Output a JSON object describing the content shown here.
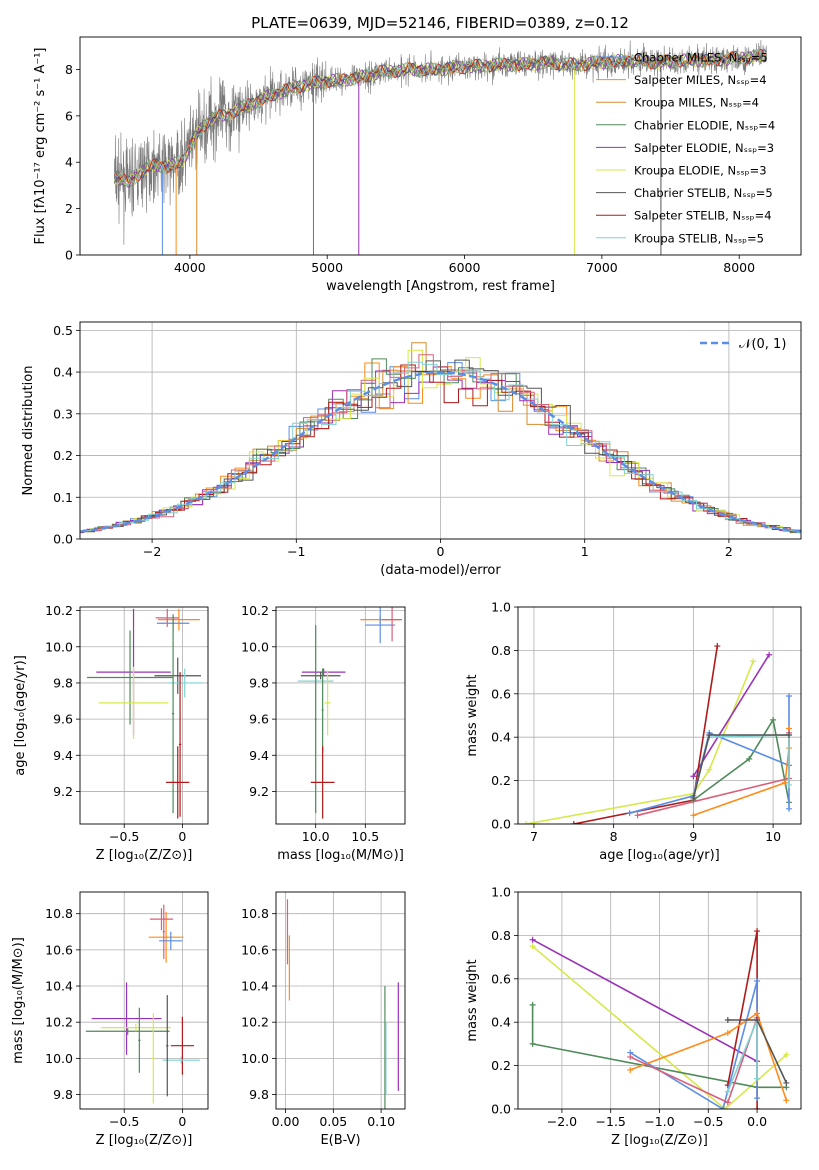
{
  "figure": {
    "title": "PLATE=0639, MJD=52146, FIBERID=0389, z=0.12"
  },
  "chart_data": [
    {
      "id": "spectrum",
      "type": "line",
      "xlabel": "wavelength [Angstrom, rest frame]",
      "ylabel": "Flux [fλ10⁻¹⁷ erg cm⁻² s⁻¹ A⁻¹]",
      "xlim": [
        3200,
        8450
      ],
      "ylim": [
        0,
        9.4
      ],
      "xticks": [
        4000,
        5000,
        6000,
        7000,
        8000
      ],
      "yticks": [
        0,
        2,
        4,
        6,
        8
      ],
      "grid": false,
      "legend_position": "right",
      "legend": [
        {
          "label": "Chabrier MILES, Nₛₛₚ=5",
          "color": "#5b8ee6"
        },
        {
          "label": "Salpeter MILES, Nₛₛₚ=4",
          "color": "#ff8c1a"
        },
        {
          "label": "Kroupa MILES, Nₛₛₚ=4",
          "color": "#d98a2e"
        },
        {
          "label": "Chabrier ELODIE, Nₛₛₚ=4",
          "color": "#4f8a5b"
        },
        {
          "label": "Salpeter ELODIE, Nₛₛₚ=3",
          "color": "#9a32b8"
        },
        {
          "label": "Kroupa ELODIE, Nₛₛₚ=3",
          "color": "#d7e84a"
        },
        {
          "label": "Chabrier STELIB, Nₛₛₚ=5",
          "color": "#555555"
        },
        {
          "label": "Salpeter STELIB, Nₛₛₚ=4",
          "color": "#b01a1a"
        },
        {
          "label": "Kroupa STELIB, Nₛₛₚ=5",
          "color": "#7fd3d3"
        }
      ],
      "data_color": "#7a7a7a",
      "continuum_points": [
        [
          3450,
          3.4
        ],
        [
          3550,
          3.1
        ],
        [
          3650,
          3.6
        ],
        [
          3750,
          3.9
        ],
        [
          3850,
          3.8
        ],
        [
          3950,
          4.1
        ],
        [
          4050,
          5.2
        ],
        [
          4150,
          5.9
        ],
        [
          4250,
          6.0
        ],
        [
          4400,
          6.4
        ],
        [
          4600,
          6.9
        ],
        [
          4800,
          7.3
        ],
        [
          5000,
          7.5
        ],
        [
          5200,
          7.6
        ],
        [
          5400,
          7.9
        ],
        [
          5600,
          8.0
        ],
        [
          5800,
          8.0
        ],
        [
          6000,
          8.1
        ],
        [
          6200,
          8.2
        ],
        [
          6400,
          8.2
        ],
        [
          6600,
          8.3
        ],
        [
          6800,
          8.2
        ],
        [
          7000,
          8.3
        ],
        [
          7200,
          8.4
        ],
        [
          7400,
          8.3
        ],
        [
          7600,
          8.4
        ],
        [
          7800,
          8.4
        ],
        [
          8000,
          8.5
        ],
        [
          8200,
          8.6
        ]
      ]
    },
    {
      "id": "residuals",
      "type": "line",
      "xlabel": "(data-model)/error",
      "ylabel": "Normed distribution",
      "xlim": [
        -2.5,
        2.5
      ],
      "ylim": [
        0,
        0.52
      ],
      "xticks": [
        -2,
        -1,
        0,
        1,
        2
      ],
      "yticks": [
        0.0,
        0.1,
        0.2,
        0.3,
        0.4,
        0.5
      ],
      "grid": true,
      "legend_position": "top-right",
      "normal_label": "𝒩(0, 1)"
    },
    {
      "id": "age_Z",
      "type": "scatter",
      "xlabel": "Z [log₁₀(Z/Z⊙)]",
      "ylabel": "age  [log₁₀(age/yr)]",
      "xlim": [
        -0.88,
        0.22
      ],
      "ylim": [
        9.02,
        10.22
      ],
      "xticks": [
        -0.5,
        0.0
      ],
      "yticks": [
        9.2,
        9.4,
        9.6,
        9.8,
        10.0,
        10.2
      ],
      "grid": true,
      "points": [
        {
          "x": -0.42,
          "xerr": 0.32,
          "y": 9.86,
          "yerr": 0.35,
          "color": "#9a32b8"
        },
        {
          "x": -0.45,
          "xerr": 0.37,
          "y": 9.83,
          "yerr": 0.26,
          "color": "#4f8a5b"
        },
        {
          "x": -0.42,
          "xerr": 0.3,
          "y": 9.69,
          "yerr": 0.2,
          "color": "#d7e84a"
        },
        {
          "x": -0.04,
          "xerr": 0.2,
          "y": 9.84,
          "yerr": 0.1,
          "color": "#555555"
        },
        {
          "x": 0.02,
          "xerr": 0.15,
          "y": 9.8,
          "yerr": 0.08,
          "color": "#7fd3d3"
        },
        {
          "x": -0.03,
          "xerr": 0.18,
          "y": 10.15,
          "yerr": 0.06,
          "color": "#ff8c1a"
        },
        {
          "x": -0.08,
          "xerr": 0.14,
          "y": 10.13,
          "yerr": 0.04,
          "color": "#5b8ee6"
        },
        {
          "x": -0.13,
          "xerr": 0.1,
          "y": 10.16,
          "yerr": 0.05,
          "color": "#d9607a"
        },
        {
          "x": -0.08,
          "xerr": 0.01,
          "y": 9.63,
          "yerr": 0.55,
          "color": "#4f8a5b"
        },
        {
          "x": -0.04,
          "xerr": 0.1,
          "y": 9.25,
          "yerr": 0.2,
          "color": "#b01a1a"
        },
        {
          "x": -0.02,
          "xerr": 0.01,
          "y": 9.46,
          "yerr": 0.4,
          "color": "#b01a1a"
        }
      ]
    },
    {
      "id": "age_mass",
      "type": "scatter",
      "xlabel": "mass [log₁₀(M/M⊙)]",
      "ylabel": "",
      "xlim": [
        9.6,
        10.9
      ],
      "ylim": [
        9.02,
        10.22
      ],
      "xticks": [
        10.0,
        10.5
      ],
      "yticks": [
        9.2,
        9.4,
        9.6,
        9.8,
        10.0,
        10.2
      ],
      "grid": true,
      "points": [
        {
          "x": 10.08,
          "xerr": 0.22,
          "y": 9.86,
          "yerr": 0.02,
          "color": "#9a32b8"
        },
        {
          "x": 10.05,
          "xerr": 0.2,
          "y": 9.84,
          "yerr": 0.02,
          "color": "#555555"
        },
        {
          "x": 10.0,
          "xerr": 0.18,
          "y": 9.81,
          "yerr": 0.02,
          "color": "#7fd3d3"
        },
        {
          "x": 10.12,
          "xerr": 0.03,
          "y": 9.69,
          "yerr": 0.18,
          "color": "#d7e84a"
        },
        {
          "x": 10.0,
          "xerr": 0.01,
          "y": 9.6,
          "yerr": 0.52,
          "color": "#4f8a5b"
        },
        {
          "x": 10.07,
          "xerr": 0.01,
          "y": 9.65,
          "yerr": 0.23,
          "color": "#4f8a5b"
        },
        {
          "x": 10.07,
          "xerr": 0.12,
          "y": 9.25,
          "yerr": 0.2,
          "color": "#b01a1a"
        },
        {
          "x": 10.65,
          "xerr": 0.2,
          "y": 10.15,
          "yerr": 0.02,
          "color": "#ff8c1a"
        },
        {
          "x": 10.65,
          "xerr": 0.15,
          "y": 10.12,
          "yerr": 0.1,
          "color": "#5b8ee6"
        },
        {
          "x": 10.77,
          "xerr": 0.1,
          "y": 10.15,
          "yerr": 0.12,
          "color": "#d9607a"
        }
      ]
    },
    {
      "id": "weight_age",
      "type": "line",
      "xlabel": "age  [log₁₀(age/yr)]",
      "ylabel": "mass weight",
      "xlim": [
        6.8,
        10.35
      ],
      "ylim": [
        0,
        1.0
      ],
      "xticks": [
        7,
        8,
        9,
        10
      ],
      "yticks": [
        0.0,
        0.2,
        0.4,
        0.6,
        0.8,
        1.0
      ],
      "grid": true,
      "series": [
        {
          "color": "#d7e84a",
          "points": [
            [
              6.9,
              0.0
            ],
            [
              9.0,
              0.14
            ],
            [
              9.2,
              0.25
            ],
            [
              9.75,
              0.75
            ]
          ]
        },
        {
          "color": "#9a32b8",
          "points": [
            [
              9.0,
              0.22
            ],
            [
              9.95,
              0.78
            ]
          ]
        },
        {
          "color": "#b01a1a",
          "points": [
            [
              7.5,
              0.0
            ],
            [
              9.0,
              0.11
            ],
            [
              9.3,
              0.82
            ]
          ]
        },
        {
          "color": "#4f8a5b",
          "points": [
            [
              9.0,
              0.11
            ],
            [
              9.7,
              0.3
            ],
            [
              10.0,
              0.48
            ],
            [
              10.2,
              0.1
            ]
          ]
        },
        {
          "color": "#5b8ee6",
          "points": [
            [
              8.2,
              0.05
            ],
            [
              9.0,
              0.13
            ],
            [
              9.2,
              0.42
            ],
            [
              10.2,
              0.27
            ],
            [
              10.2,
              0.59
            ],
            [
              10.2,
              0.07
            ]
          ]
        },
        {
          "color": "#ff8c1a",
          "points": [
            [
              9.0,
              0.04
            ],
            [
              10.15,
              0.19
            ],
            [
              10.2,
              0.35
            ],
            [
              10.2,
              0.44
            ]
          ]
        },
        {
          "color": "#d9607a",
          "points": [
            [
              8.3,
              0.04
            ],
            [
              10.2,
              0.21
            ],
            [
              10.2,
              0.42
            ]
          ]
        },
        {
          "color": "#7fd3d3",
          "points": [
            [
              9.2,
              0.4
            ],
            [
              10.2,
              0.41
            ],
            [
              10.2,
              0.18
            ]
          ]
        },
        {
          "color": "#555555",
          "points": [
            [
              9.0,
              0.12
            ],
            [
              9.2,
              0.41
            ],
            [
              10.2,
              0.41
            ]
          ]
        }
      ]
    },
    {
      "id": "mass_Z",
      "type": "scatter",
      "xlabel": "Z [log₁₀(Z/Z⊙)]",
      "ylabel": "mass [log₁₀(M/M⊙)]",
      "xlim": [
        -0.88,
        0.22
      ],
      "ylim": [
        9.72,
        10.92
      ],
      "xticks": [
        -0.5,
        0.0
      ],
      "yticks": [
        9.8,
        10.0,
        10.2,
        10.4,
        10.6,
        10.8
      ],
      "grid": true,
      "points": [
        {
          "x": -0.48,
          "xerr": 0.3,
          "y": 10.22,
          "yerr": 0.2,
          "color": "#9a32b8"
        },
        {
          "x": -0.47,
          "xerr": 0.36,
          "y": 10.15,
          "yerr": 0.02,
          "color": "#4f8a5b"
        },
        {
          "x": -0.4,
          "xerr": 0.3,
          "y": 10.17,
          "yerr": 0.02,
          "color": "#d7e84a"
        },
        {
          "x": -0.37,
          "xerr": 0.01,
          "y": 10.1,
          "yerr": 0.18,
          "color": "#4f8a5b"
        },
        {
          "x": -0.25,
          "xerr": 0.01,
          "y": 10.0,
          "yerr": 0.25,
          "color": "#d7e84a"
        },
        {
          "x": 0.0,
          "xerr": 0.1,
          "y": 10.07,
          "yerr": 0.16,
          "color": "#b01a1a"
        },
        {
          "x": -0.01,
          "xerr": 0.16,
          "y": 9.99,
          "yerr": 0.02,
          "color": "#7fd3d3"
        },
        {
          "x": -0.13,
          "xerr": 0.01,
          "y": 10.07,
          "yerr": 0.28,
          "color": "#555555"
        },
        {
          "x": -0.14,
          "xerr": 0.15,
          "y": 10.67,
          "yerr": 0.14,
          "color": "#ff8c1a"
        },
        {
          "x": -0.1,
          "xerr": 0.1,
          "y": 10.65,
          "yerr": 0.05,
          "color": "#5b8ee6"
        },
        {
          "x": -0.18,
          "xerr": 0.1,
          "y": 10.77,
          "yerr": 0.06,
          "color": "#d9607a"
        },
        {
          "x": -0.16,
          "xerr": 0.01,
          "y": 10.7,
          "yerr": 0.15,
          "color": "#d9607a"
        }
      ]
    },
    {
      "id": "mass_ebv",
      "type": "scatter",
      "xlabel": "E(B-V)",
      "ylabel": "",
      "xlim": [
        -0.01,
        0.125
      ],
      "ylim": [
        9.72,
        10.92
      ],
      "xticks": [
        0.0,
        0.05,
        0.1
      ],
      "yticks": [
        9.8,
        10.0,
        10.2,
        10.4,
        10.6,
        10.8
      ],
      "grid": true,
      "points": [
        {
          "x": 0.002,
          "xerr": 0.0,
          "y": 10.7,
          "yerr": 0.18,
          "color": "#d9607a"
        },
        {
          "x": 0.004,
          "xerr": 0.0,
          "y": 10.5,
          "yerr": 0.18,
          "color": "#ff8c1a"
        },
        {
          "x": 0.104,
          "xerr": 0.0,
          "y": 10.05,
          "yerr": 0.35,
          "color": "#4f8a5b"
        },
        {
          "x": 0.105,
          "xerr": 0.0,
          "y": 10.0,
          "yerr": 0.2,
          "color": "#7fd3d3"
        },
        {
          "x": 0.118,
          "xerr": 0.0,
          "y": 10.12,
          "yerr": 0.3,
          "color": "#9a32b8"
        }
      ]
    },
    {
      "id": "weight_Z",
      "type": "line",
      "xlabel": "Z [log₁₀(Z/Z⊙)]",
      "ylabel": "mass weight",
      "xlim": [
        -2.45,
        0.45
      ],
      "ylim": [
        0,
        1.0
      ],
      "xticks": [
        -2.0,
        -1.5,
        -1.0,
        -0.5,
        0.0
      ],
      "yticks": [
        0.0,
        0.2,
        0.4,
        0.6,
        0.8,
        1.0
      ],
      "grid": true,
      "series": [
        {
          "color": "#9a32b8",
          "points": [
            [
              -2.3,
              0.78
            ],
            [
              0.0,
              0.22
            ]
          ]
        },
        {
          "color": "#d7e84a",
          "points": [
            [
              -2.3,
              0.75
            ],
            [
              -0.33,
              0.0
            ],
            [
              0.3,
              0.25
            ]
          ]
        },
        {
          "color": "#4f8a5b",
          "points": [
            [
              -2.3,
              0.48
            ],
            [
              -2.3,
              0.3
            ],
            [
              0.0,
              0.1
            ],
            [
              0.3,
              0.1
            ]
          ]
        },
        {
          "color": "#b01a1a",
          "points": [
            [
              -0.3,
              0.11
            ],
            [
              0.0,
              0.82
            ],
            [
              0.0,
              0.0
            ]
          ]
        },
        {
          "color": "#5b8ee6",
          "points": [
            [
              -1.3,
              0.26
            ],
            [
              -0.35,
              0.0
            ],
            [
              0.0,
              0.59
            ],
            [
              0.0,
              0.05
            ]
          ]
        },
        {
          "color": "#ff8c1a",
          "points": [
            [
              -1.3,
              0.18
            ],
            [
              -0.3,
              0.35
            ],
            [
              0.0,
              0.44
            ],
            [
              0.3,
              0.04
            ]
          ]
        },
        {
          "color": "#d9607a",
          "points": [
            [
              -1.3,
              0.24
            ],
            [
              -0.3,
              0.03
            ],
            [
              0.0,
              0.42
            ]
          ]
        },
        {
          "color": "#7fd3d3",
          "points": [
            [
              -0.3,
              0.08
            ],
            [
              0.0,
              0.41
            ],
            [
              0.0,
              0.14
            ]
          ]
        },
        {
          "color": "#555555",
          "points": [
            [
              -0.3,
              0.41
            ],
            [
              0.0,
              0.41
            ],
            [
              0.3,
              0.12
            ]
          ]
        }
      ]
    }
  ]
}
